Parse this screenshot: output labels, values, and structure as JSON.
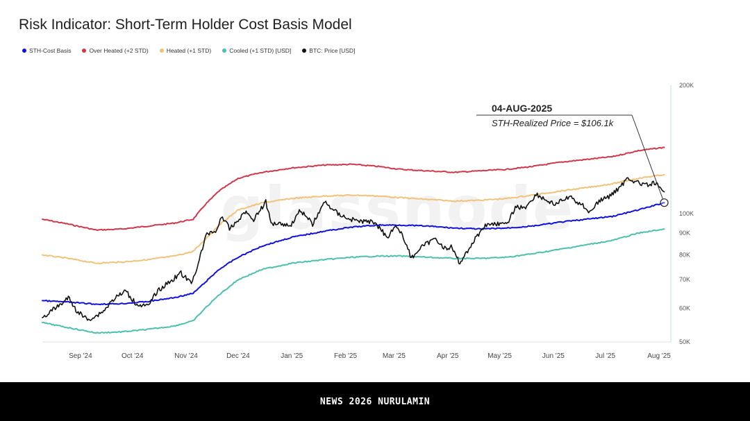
{
  "chart_data": {
    "type": "line",
    "title": "Risk Indicator: Short-Term Holder Cost Basis Model",
    "watermark": "glassnode",
    "y_scale": "log",
    "ylim": [
      50000,
      200000
    ],
    "y_ticks": [
      {
        "value": 50000,
        "label": "50K"
      },
      {
        "value": 60000,
        "label": "60K"
      },
      {
        "value": 70000,
        "label": "70K"
      },
      {
        "value": 80000,
        "label": "80K"
      },
      {
        "value": 90000,
        "label": "90K"
      },
      {
        "value": 100000,
        "label": "100K"
      },
      {
        "value": 200000,
        "label": "200K"
      }
    ],
    "x_range": [
      "2024-08-10",
      "2025-08-07"
    ],
    "x_ticks": [
      {
        "date": "2024-09-01",
        "label": "Sep '24"
      },
      {
        "date": "2024-10-01",
        "label": "Oct '24"
      },
      {
        "date": "2024-11-01",
        "label": "Nov '24"
      },
      {
        "date": "2024-12-01",
        "label": "Dec '24"
      },
      {
        "date": "2025-01-01",
        "label": "Jan '25"
      },
      {
        "date": "2025-02-01",
        "label": "Feb '25"
      },
      {
        "date": "2025-03-01",
        "label": "Mar '25"
      },
      {
        "date": "2025-04-01",
        "label": "Apr '25"
      },
      {
        "date": "2025-05-01",
        "label": "May '25"
      },
      {
        "date": "2025-06-01",
        "label": "Jun '25"
      },
      {
        "date": "2025-07-01",
        "label": "Jul '25"
      },
      {
        "date": "2025-08-01",
        "label": "Aug '25"
      }
    ],
    "series": [
      {
        "name": "STH-Cost Basis",
        "key": "sth",
        "color": "#1010e0",
        "width": 2,
        "points": [
          [
            "2024-08-10",
            62500
          ],
          [
            "2024-08-25",
            62000
          ],
          [
            "2024-09-10",
            61300
          ],
          [
            "2024-09-25",
            61500
          ],
          [
            "2024-10-10",
            62200
          ],
          [
            "2024-10-25",
            63500
          ],
          [
            "2024-11-05",
            65000
          ],
          [
            "2024-11-12",
            69000
          ],
          [
            "2024-11-20",
            74000
          ],
          [
            "2024-12-01",
            79000
          ],
          [
            "2024-12-15",
            84000
          ],
          [
            "2025-01-01",
            88000
          ],
          [
            "2025-01-20",
            91000
          ],
          [
            "2025-02-05",
            93000
          ],
          [
            "2025-02-20",
            94000
          ],
          [
            "2025-03-05",
            94000
          ],
          [
            "2025-03-20",
            93500
          ],
          [
            "2025-04-05",
            92500
          ],
          [
            "2025-04-20",
            92000
          ],
          [
            "2025-05-05",
            92500
          ],
          [
            "2025-05-20",
            93500
          ],
          [
            "2025-06-05",
            95500
          ],
          [
            "2025-06-20",
            97000
          ],
          [
            "2025-07-05",
            98500
          ],
          [
            "2025-07-20",
            102000
          ],
          [
            "2025-08-04",
            106100
          ]
        ]
      },
      {
        "name": "Over Heated (+2 STD)",
        "key": "overheated",
        "color": "#d0384a",
        "width": 2,
        "points": [
          [
            "2024-08-10",
            97000
          ],
          [
            "2024-08-25",
            94500
          ],
          [
            "2024-09-10",
            91500
          ],
          [
            "2024-09-25",
            92000
          ],
          [
            "2024-10-10",
            93500
          ],
          [
            "2024-10-25",
            95000
          ],
          [
            "2024-11-05",
            97000
          ],
          [
            "2024-11-12",
            105000
          ],
          [
            "2024-11-20",
            113000
          ],
          [
            "2024-12-01",
            121000
          ],
          [
            "2024-12-15",
            125000
          ],
          [
            "2025-01-01",
            128000
          ],
          [
            "2025-01-20",
            130000
          ],
          [
            "2025-02-05",
            130500
          ],
          [
            "2025-02-20",
            129000
          ],
          [
            "2025-03-05",
            127000
          ],
          [
            "2025-03-20",
            126000
          ],
          [
            "2025-04-05",
            125000
          ],
          [
            "2025-04-20",
            126000
          ],
          [
            "2025-05-05",
            127000
          ],
          [
            "2025-05-20",
            129000
          ],
          [
            "2025-06-05",
            132000
          ],
          [
            "2025-06-20",
            134000
          ],
          [
            "2025-07-05",
            136000
          ],
          [
            "2025-07-20",
            140500
          ],
          [
            "2025-08-04",
            143000
          ]
        ]
      },
      {
        "name": "Heated (+1 STD)",
        "key": "heated",
        "color": "#f2c27a",
        "width": 2,
        "points": [
          [
            "2024-08-10",
            80000
          ],
          [
            "2024-08-25",
            78500
          ],
          [
            "2024-09-10",
            76500
          ],
          [
            "2024-09-25",
            77000
          ],
          [
            "2024-10-10",
            78000
          ],
          [
            "2024-10-25",
            79500
          ],
          [
            "2024-11-05",
            81500
          ],
          [
            "2024-11-12",
            87000
          ],
          [
            "2024-11-20",
            94000
          ],
          [
            "2024-12-01",
            102000
          ],
          [
            "2024-12-15",
            106000
          ],
          [
            "2025-01-01",
            108500
          ],
          [
            "2025-01-20",
            110000
          ],
          [
            "2025-02-05",
            110500
          ],
          [
            "2025-02-20",
            110000
          ],
          [
            "2025-03-05",
            109000
          ],
          [
            "2025-03-20",
            108000
          ],
          [
            "2025-04-05",
            107000
          ],
          [
            "2025-04-20",
            107500
          ],
          [
            "2025-05-05",
            108500
          ],
          [
            "2025-05-20",
            110500
          ],
          [
            "2025-06-05",
            113000
          ],
          [
            "2025-06-20",
            115000
          ],
          [
            "2025-07-05",
            117500
          ],
          [
            "2025-07-20",
            121000
          ],
          [
            "2025-08-04",
            123500
          ]
        ]
      },
      {
        "name": "Cooled (+1 STD) [USD]",
        "key": "cooled",
        "color": "#4dbfad",
        "width": 2,
        "points": [
          [
            "2024-08-10",
            55500
          ],
          [
            "2024-08-25",
            54000
          ],
          [
            "2024-09-10",
            52500
          ],
          [
            "2024-09-25",
            52800
          ],
          [
            "2024-10-10",
            53500
          ],
          [
            "2024-10-25",
            54500
          ],
          [
            "2024-11-05",
            56000
          ],
          [
            "2024-11-12",
            60000
          ],
          [
            "2024-11-20",
            64500
          ],
          [
            "2024-12-01",
            70000
          ],
          [
            "2024-12-15",
            74000
          ],
          [
            "2025-01-01",
            76500
          ],
          [
            "2025-01-20",
            78000
          ],
          [
            "2025-02-05",
            79000
          ],
          [
            "2025-02-20",
            79500
          ],
          [
            "2025-03-05",
            79500
          ],
          [
            "2025-03-20",
            79000
          ],
          [
            "2025-04-05",
            78500
          ],
          [
            "2025-04-20",
            78500
          ],
          [
            "2025-05-05",
            79000
          ],
          [
            "2025-05-20",
            80500
          ],
          [
            "2025-06-05",
            82500
          ],
          [
            "2025-06-20",
            84500
          ],
          [
            "2025-07-05",
            86500
          ],
          [
            "2025-07-20",
            90000
          ],
          [
            "2025-08-04",
            92000
          ]
        ]
      },
      {
        "name": "BTC: Price [USD]",
        "key": "price",
        "color": "#111111",
        "width": 1.6,
        "points": [
          [
            "2024-08-10",
            57000
          ],
          [
            "2024-08-15",
            59000
          ],
          [
            "2024-08-20",
            61000
          ],
          [
            "2024-08-25",
            63500
          ],
          [
            "2024-08-30",
            59000
          ],
          [
            "2024-09-05",
            56500
          ],
          [
            "2024-09-10",
            57500
          ],
          [
            "2024-09-15",
            59500
          ],
          [
            "2024-09-20",
            63000
          ],
          [
            "2024-09-27",
            65800
          ],
          [
            "2024-10-03",
            61500
          ],
          [
            "2024-10-10",
            60500
          ],
          [
            "2024-10-15",
            65500
          ],
          [
            "2024-10-21",
            68500
          ],
          [
            "2024-10-29",
            72500
          ],
          [
            "2024-11-04",
            68500
          ],
          [
            "2024-11-08",
            76500
          ],
          [
            "2024-11-13",
            90000
          ],
          [
            "2024-11-18",
            91000
          ],
          [
            "2024-11-22",
            98500
          ],
          [
            "2024-11-26",
            92000
          ],
          [
            "2024-12-01",
            96500
          ],
          [
            "2024-12-05",
            101000
          ],
          [
            "2024-12-10",
            97000
          ],
          [
            "2024-12-17",
            106500
          ],
          [
            "2024-12-20",
            95000
          ],
          [
            "2024-12-26",
            95000
          ],
          [
            "2024-12-31",
            93500
          ],
          [
            "2025-01-06",
            102000
          ],
          [
            "2025-01-13",
            94500
          ],
          [
            "2025-01-20",
            106500
          ],
          [
            "2025-01-27",
            100500
          ],
          [
            "2025-02-02",
            97500
          ],
          [
            "2025-02-09",
            96000
          ],
          [
            "2025-02-18",
            95500
          ],
          [
            "2025-02-25",
            88000
          ],
          [
            "2025-03-02",
            94000
          ],
          [
            "2025-03-07",
            87000
          ],
          [
            "2025-03-11",
            78500
          ],
          [
            "2025-03-16",
            83000
          ],
          [
            "2025-03-25",
            87500
          ],
          [
            "2025-03-31",
            82500
          ],
          [
            "2025-04-03",
            83500
          ],
          [
            "2025-04-08",
            76500
          ],
          [
            "2025-04-15",
            85000
          ],
          [
            "2025-04-22",
            93500
          ],
          [
            "2025-04-28",
            95000
          ],
          [
            "2025-05-05",
            94000
          ],
          [
            "2025-05-10",
            103500
          ],
          [
            "2025-05-16",
            103500
          ],
          [
            "2025-05-22",
            111000
          ],
          [
            "2025-05-28",
            107500
          ],
          [
            "2025-06-02",
            105000
          ],
          [
            "2025-06-10",
            109500
          ],
          [
            "2025-06-18",
            104500
          ],
          [
            "2025-06-22",
            101000
          ],
          [
            "2025-06-28",
            107500
          ],
          [
            "2025-07-03",
            109500
          ],
          [
            "2025-07-10",
            116000
          ],
          [
            "2025-07-14",
            121500
          ],
          [
            "2025-07-20",
            118000
          ],
          [
            "2025-07-25",
            116500
          ],
          [
            "2025-07-30",
            118000
          ],
          [
            "2025-08-02",
            113500
          ],
          [
            "2025-08-04",
            112500
          ]
        ]
      }
    ],
    "annotation": {
      "date_label": "04-AUG-2025",
      "text": "STH-Realized Price = $106.1k",
      "point_date": "2025-08-04",
      "point_value": 106100
    }
  },
  "footer": {
    "text": "NEWS 2026 NURULAMIN"
  }
}
